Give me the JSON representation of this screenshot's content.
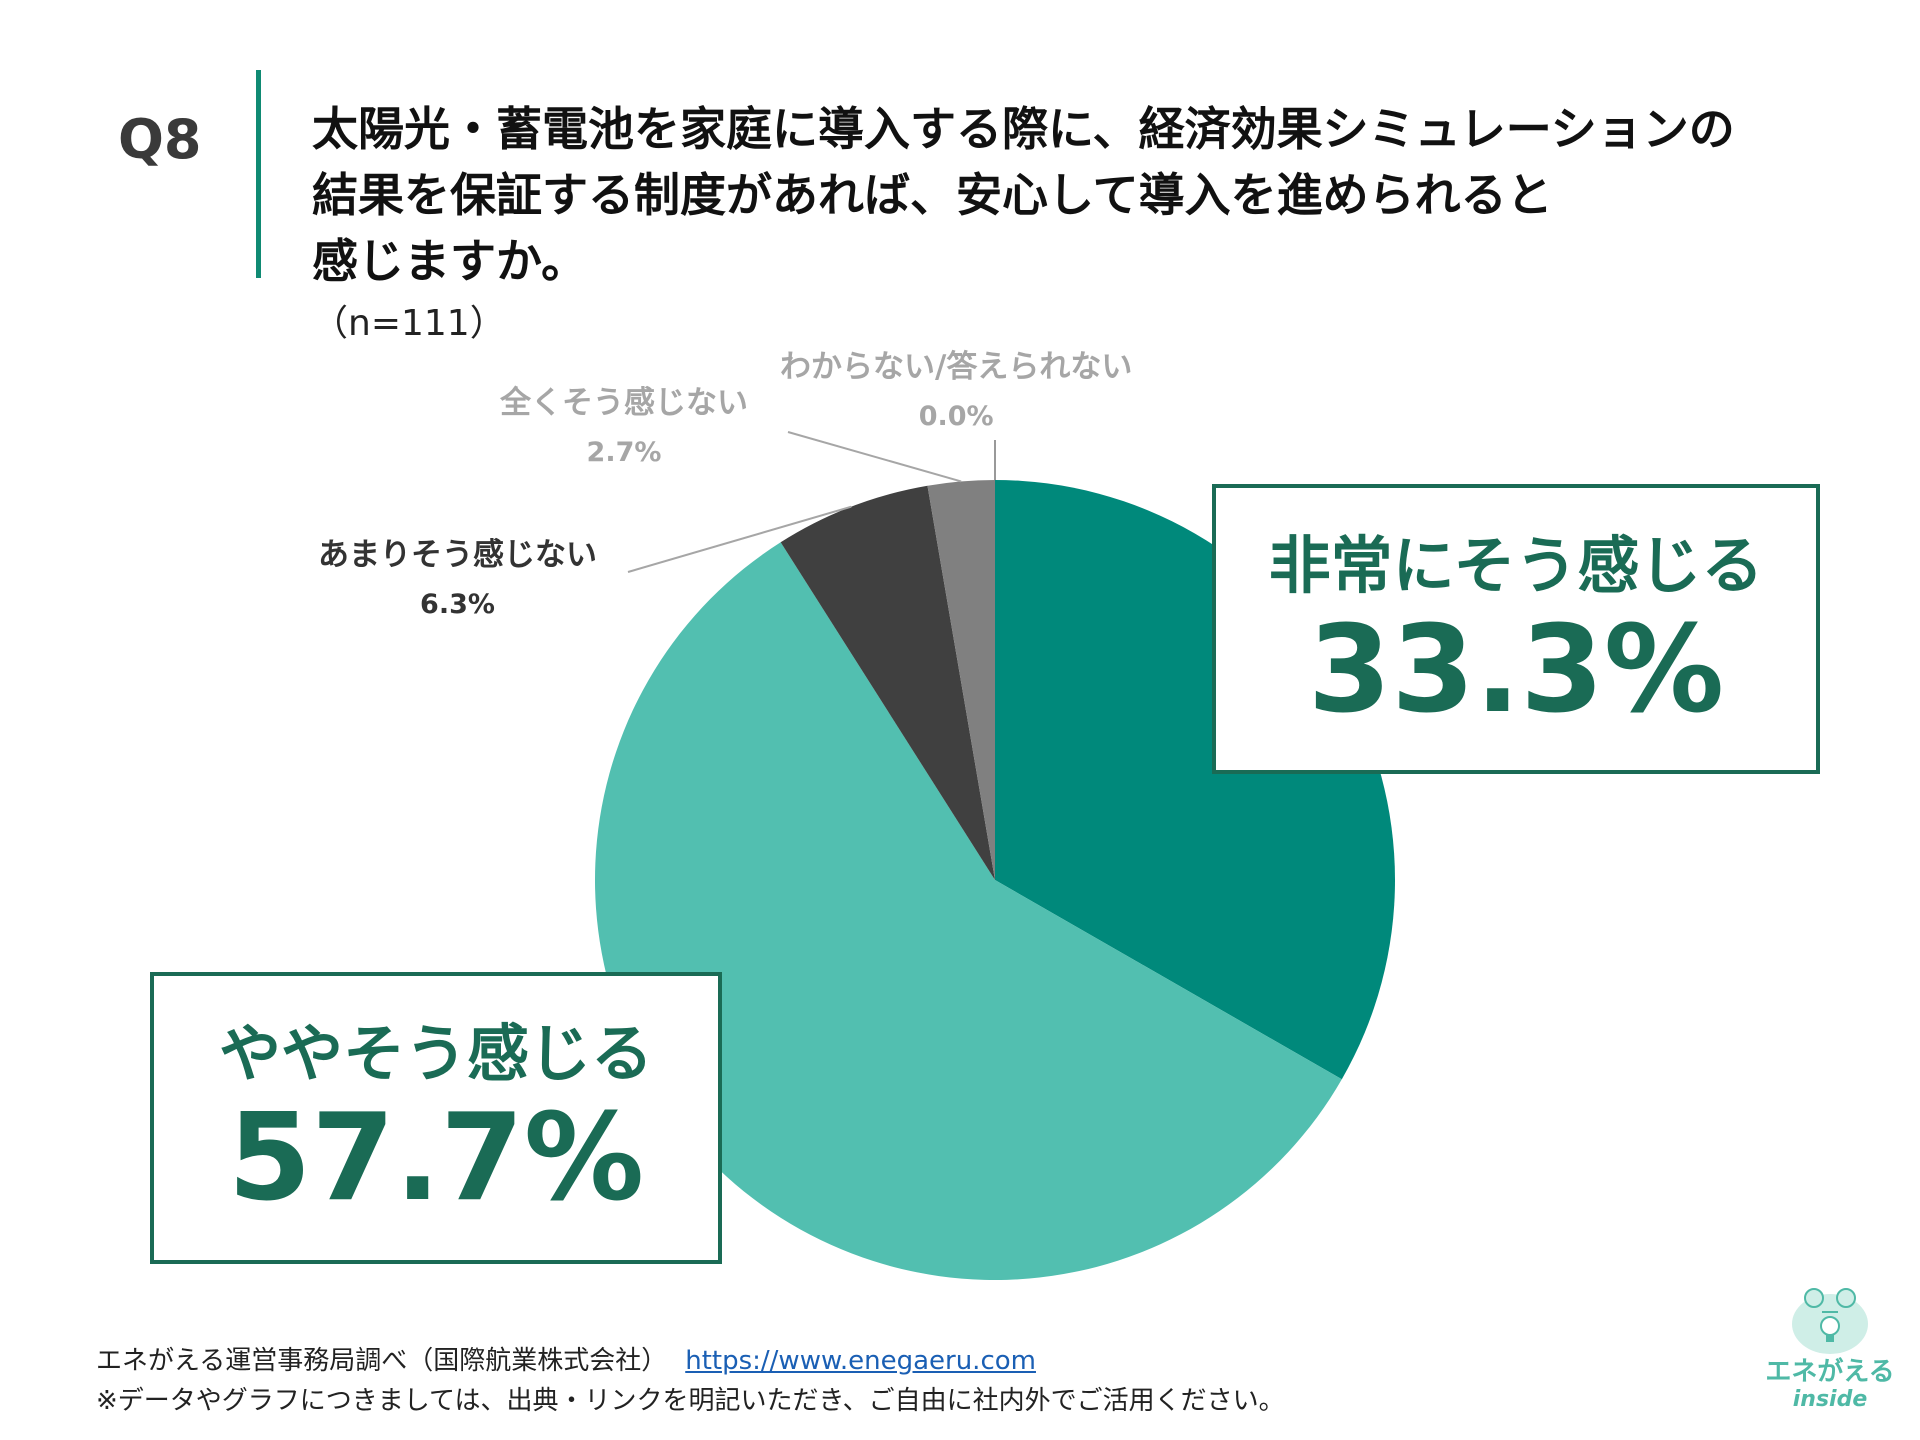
{
  "question": {
    "number": "Q8",
    "lines": [
      "太陽光・蓄電池を家庭に導入する際に、経済効果シミュレーションの",
      "結果を保証する制度があれば、安心して導入を進められると",
      "感じますか。"
    ],
    "sample": "（n=111）"
  },
  "chart_data": {
    "type": "pie",
    "start_angle_deg": 0,
    "direction": "clockwise",
    "slices": [
      {
        "label": "非常にそう感じる",
        "value": 33.3,
        "value_label": "33.3%",
        "color": "#00897b"
      },
      {
        "label": "ややそう感じる",
        "value": 57.7,
        "value_label": "57.7%",
        "color": "#52bfb0"
      },
      {
        "label": "あまりそう感じない",
        "value": 6.3,
        "value_label": "6.3%",
        "color": "#404040"
      },
      {
        "label": "全くそう感じない",
        "value": 2.7,
        "value_label": "2.7%",
        "color": "#808080"
      },
      {
        "label": "わからない/答えられない",
        "value": 0.0,
        "value_label": "0.0%",
        "color": "#b3b3b3"
      }
    ],
    "label_colors": {
      "highlight": "#1a6b55",
      "dark": "#333333",
      "muted": "#a6a6a6"
    }
  },
  "footer": {
    "source": "エネがえる運営事務局調べ（国際航業株式会社）",
    "url": "https://www.enegaeru.com",
    "note": "※データやグラフにつきましては、出典・リンクを明記いただき、ご自由に社内外でご活用ください。"
  },
  "logo": {
    "name": "エネがえる",
    "sub": "inside",
    "icon": "lightbulb-mascot-icon",
    "color": "#4fb9a6"
  }
}
